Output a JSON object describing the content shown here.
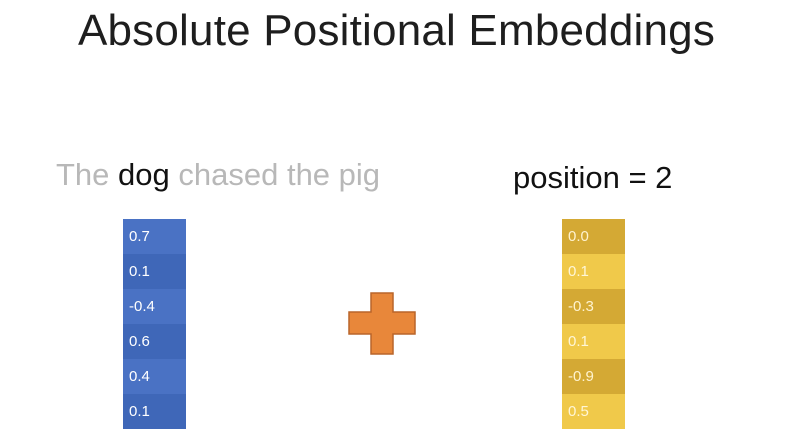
{
  "title": "Absolute Positional Embeddings",
  "sentence": {
    "before": "The ",
    "highlight": "dog",
    "after": " chased the pig"
  },
  "position_label": "position = 2",
  "word_vector": [
    "0.7",
    "0.1",
    "-0.4",
    "0.6",
    "0.4",
    "0.1"
  ],
  "position_vector": [
    "0.0",
    "0.1",
    "-0.3",
    "0.1",
    "-0.9",
    "0.5"
  ],
  "operator_icon": "plus-icon",
  "colors": {
    "word_vector": "#4a72c4",
    "position_vector": "#f0c94a",
    "plus": "#e8873a"
  }
}
